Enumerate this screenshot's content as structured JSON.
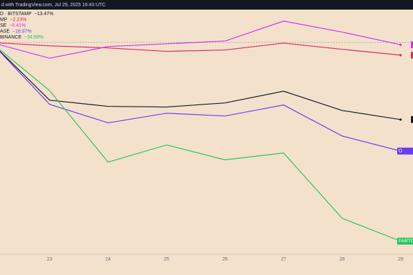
{
  "chart_data": {
    "type": "line",
    "header": "d with TradingView.com, Jul 29, 2025 16:43 UTC",
    "categories": [
      null,
      "23",
      "24",
      "25",
      "26",
      "27",
      "28",
      "29"
    ],
    "ylim": [
      -37,
      7.4
    ],
    "series": [
      {
        "name": "D · BITSTAMP",
        "legend_value": "−13.47%",
        "color": "#131722",
        "values": [
          0,
          -10.08,
          -11.16,
          -11.28,
          -10.56,
          -8.52,
          -11.88,
          -13.47
        ]
      },
      {
        "name": "MP",
        "legend_value": "−2.23%",
        "color": "#e0245e",
        "values": [
          0,
          -0.6,
          -0.96,
          -1.56,
          -1.32,
          -0.12,
          -1.2,
          -2.23
        ]
      },
      {
        "name": "SE",
        "legend_value": "−0.41%",
        "color": "#d62df0",
        "values": [
          0,
          -2.76,
          -0.72,
          -0.24,
          0.24,
          3.72,
          1.8,
          -0.41
        ]
      },
      {
        "name": "ASE",
        "legend_value": "−18.97%",
        "color": "#6b3cf0",
        "tag": "O",
        "values": [
          0,
          -10.8,
          -14.04,
          -12.36,
          -12.84,
          -10.92,
          -16.33,
          -18.97
        ]
      },
      {
        "name": "BINANCE",
        "legend_value": "−34.69%",
        "color": "#22c55e",
        "tag": "FARTCOI",
        "values": [
          0,
          -8.4,
          -20.9,
          -17.9,
          -20.5,
          -19.3,
          -30.7,
          -34.69
        ]
      }
    ]
  }
}
